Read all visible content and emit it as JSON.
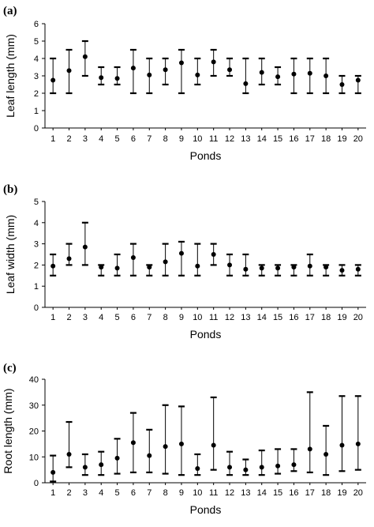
{
  "chart_data": [
    {
      "panel": "(a)",
      "type": "scatter",
      "error_bars": "range",
      "xlabel": "Ponds",
      "ylabel": "Leaf length (mm)",
      "ylim": [
        0,
        6
      ],
      "yticks": [
        0,
        1,
        2,
        3,
        4,
        5,
        6
      ],
      "x": [
        "1",
        "2",
        "3",
        "4",
        "5",
        "6",
        "7",
        "8",
        "9",
        "10",
        "11",
        "12",
        "13",
        "14",
        "15",
        "16",
        "17",
        "18",
        "19",
        "20"
      ],
      "mean": [
        2.75,
        3.3,
        4.1,
        2.9,
        2.85,
        3.45,
        3.05,
        3.35,
        3.75,
        3.05,
        3.8,
        3.35,
        2.55,
        3.2,
        2.95,
        3.1,
        3.15,
        3.0,
        2.5,
        2.75
      ],
      "min": [
        2.0,
        2.0,
        3.0,
        2.5,
        2.5,
        2.0,
        2.0,
        2.5,
        2.0,
        2.5,
        3.0,
        3.0,
        2.0,
        2.5,
        2.5,
        2.0,
        2.0,
        2.0,
        2.0,
        2.0
      ],
      "max": [
        4.0,
        4.5,
        5.0,
        3.5,
        3.5,
        4.5,
        4.0,
        4.0,
        4.5,
        4.0,
        4.5,
        4.0,
        4.0,
        4.0,
        3.5,
        4.0,
        4.0,
        4.0,
        3.0,
        3.0
      ]
    },
    {
      "panel": "(b)",
      "type": "scatter",
      "error_bars": "range",
      "xlabel": "Ponds",
      "ylabel": "Leaf width (mm)",
      "ylim": [
        0,
        5
      ],
      "yticks": [
        0,
        1,
        2,
        3,
        4,
        5
      ],
      "x": [
        "1",
        "2",
        "3",
        "4",
        "5",
        "6",
        "7",
        "8",
        "9",
        "10",
        "11",
        "12",
        "13",
        "14",
        "15",
        "16",
        "17",
        "18",
        "19",
        "20"
      ],
      "mean": [
        1.95,
        2.3,
        2.85,
        1.9,
        1.85,
        2.35,
        1.9,
        2.15,
        2.55,
        1.95,
        2.5,
        2.0,
        1.8,
        1.85,
        1.85,
        1.9,
        1.95,
        1.9,
        1.75,
        1.8
      ],
      "min": [
        1.5,
        2.0,
        2.0,
        1.5,
        1.5,
        1.5,
        1.5,
        1.5,
        1.5,
        1.5,
        2.0,
        1.5,
        1.5,
        1.5,
        1.5,
        1.5,
        1.5,
        1.5,
        1.5,
        1.5
      ],
      "max": [
        2.5,
        3.0,
        4.0,
        2.0,
        2.5,
        3.0,
        2.0,
        3.0,
        3.1,
        3.0,
        3.0,
        2.5,
        2.5,
        2.0,
        2.0,
        2.0,
        2.5,
        2.0,
        2.0,
        2.0
      ]
    },
    {
      "panel": "(c)",
      "type": "scatter",
      "error_bars": "range",
      "xlabel": "Ponds",
      "ylabel": "Root length (mm)",
      "ylim": [
        0,
        40
      ],
      "yticks": [
        0,
        10,
        20,
        30,
        40
      ],
      "x": [
        "1",
        "2",
        "3",
        "4",
        "5",
        "6",
        "7",
        "8",
        "9",
        "10",
        "11",
        "12",
        "13",
        "14",
        "15",
        "16",
        "17",
        "18",
        "19",
        "20"
      ],
      "mean": [
        4.0,
        11.0,
        6.0,
        7.0,
        9.5,
        15.5,
        10.5,
        14.0,
        15.0,
        5.5,
        14.5,
        6.0,
        5.0,
        6.0,
        6.5,
        7.0,
        13.0,
        11.0,
        14.5,
        15.0
      ],
      "min": [
        0.5,
        6.0,
        3.0,
        3.0,
        3.5,
        4.0,
        4.0,
        3.5,
        3.0,
        3.0,
        5.0,
        3.0,
        3.0,
        3.0,
        3.5,
        4.5,
        4.0,
        3.0,
        4.5,
        5.0
      ],
      "max": [
        10.5,
        23.5,
        11.0,
        12.0,
        17.0,
        27.0,
        20.5,
        30.0,
        29.5,
        11.0,
        33.0,
        12.0,
        9.0,
        12.5,
        13.0,
        13.0,
        35.0,
        22.0,
        33.5,
        33.5
      ]
    }
  ]
}
